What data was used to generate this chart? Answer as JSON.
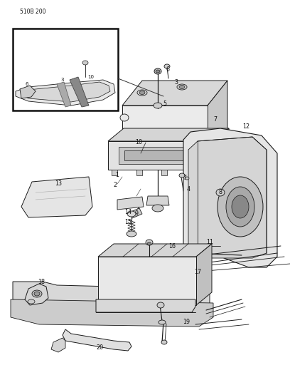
{
  "page_id": "510B 200",
  "bg_color": "#ffffff",
  "lc": "#1a1a1a",
  "figsize": [
    4.08,
    5.33
  ],
  "dpi": 100
}
